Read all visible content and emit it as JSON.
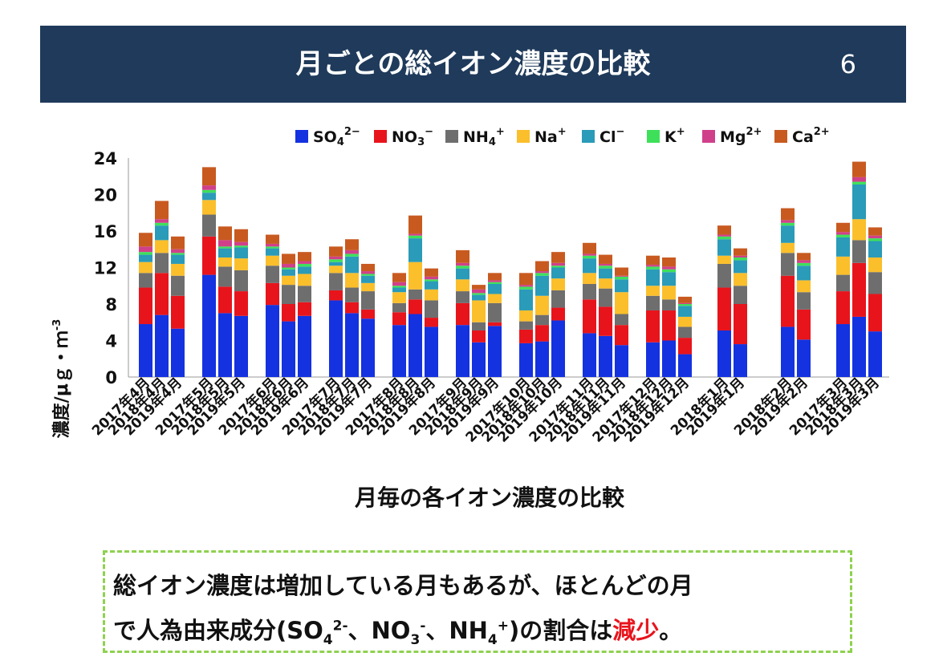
{
  "header": {
    "title": "月ごとの総イオン濃度の比較",
    "page_number": "6"
  },
  "note": {
    "line1": "総イオン濃度は増加している月もあるが、ほとんどの月",
    "line2_prefix": "で人為由来成分(SO",
    "so_sub": "4",
    "so_sup": "2-",
    "sep1": "、NO",
    "no_sub": "3",
    "no_sup": "-",
    "sep2": "、NH",
    "nh_sub": "4",
    "nh_sup": "+",
    "line2_mid": ")の割合は",
    "line2_emph": "減少",
    "line2_end": "。",
    "emph_color": "#e8141c"
  },
  "chart_data": {
    "type": "bar",
    "stacked": true,
    "xlabel": "月毎の各イオン濃度の比較",
    "ylabel": "濃度/μｇ・ｍ",
    "ylabel_sup": "-3",
    "ylim": [
      0,
      24
    ],
    "yticks": [
      0,
      4,
      8,
      12,
      16,
      20,
      24
    ],
    "legend_position": "top",
    "series": [
      {
        "name": "SO",
        "sub": "4",
        "sup": "2−",
        "color": "#1432e0"
      },
      {
        "name": "NO",
        "sub": "3",
        "sup": "−",
        "color": "#e8141c"
      },
      {
        "name": "NH",
        "sub": "4",
        "sup": "+",
        "color": "#6e6e6e"
      },
      {
        "name": "Na",
        "sub": "",
        "sup": "+",
        "color": "#fbbf2c"
      },
      {
        "name": "Cl",
        "sub": "",
        "sup": "−",
        "color": "#2a9bb8"
      },
      {
        "name": "K",
        "sub": "",
        "sup": "+",
        "color": "#3ee05a"
      },
      {
        "name": "Mg",
        "sub": "",
        "sup": "2+",
        "color": "#d0408a"
      },
      {
        "name": "Ca",
        "sub": "",
        "sup": "2+",
        "color": "#c85a20"
      }
    ],
    "groups": [
      {
        "bars": [
          {
            "label": "2017年4月",
            "values": [
              5.8,
              4.0,
              1.6,
              1.2,
              0.8,
              0.3,
              0.6,
              1.5
            ]
          },
          {
            "label": "2018年4月",
            "values": [
              6.8,
              4.6,
              2.2,
              1.4,
              1.6,
              0.3,
              0.4,
              2.0
            ]
          },
          {
            "label": "2019年4月",
            "values": [
              5.3,
              3.6,
              2.2,
              1.3,
              1.0,
              0.2,
              0.4,
              1.4
            ]
          }
        ]
      },
      {
        "bars": [
          {
            "label": "2017年5月",
            "values": [
              11.2,
              4.2,
              2.4,
              1.6,
              0.8,
              0.3,
              0.5,
              2.0
            ]
          },
          {
            "label": "2018年5月",
            "values": [
              7.0,
              2.9,
              2.2,
              1.0,
              1.0,
              0.2,
              0.7,
              1.5
            ]
          },
          {
            "label": "2019年5月",
            "values": [
              6.7,
              2.7,
              2.3,
              1.3,
              1.2,
              0.2,
              0.4,
              1.4
            ]
          }
        ]
      },
      {
        "bars": [
          {
            "label": "2017年6月",
            "values": [
              7.9,
              2.4,
              1.9,
              1.1,
              0.8,
              0.2,
              0.3,
              1.0
            ]
          },
          {
            "label": "2018年6月",
            "values": [
              6.1,
              1.9,
              2.1,
              1.0,
              0.7,
              0.2,
              0.4,
              1.1
            ]
          },
          {
            "label": "2019年6月",
            "values": [
              6.7,
              1.5,
              1.8,
              1.3,
              0.8,
              0.3,
              0.3,
              1.0
            ]
          }
        ]
      },
      {
        "bars": [
          {
            "label": "2017年7月",
            "values": [
              8.4,
              1.1,
              1.9,
              0.8,
              0.4,
              0.3,
              0.3,
              1.1
            ]
          },
          {
            "label": "2018年7月",
            "values": [
              7.0,
              1.2,
              1.6,
              1.6,
              1.8,
              0.3,
              0.4,
              1.2
            ]
          },
          {
            "label": "2019年7月",
            "values": [
              6.4,
              1.0,
              2.0,
              0.9,
              0.8,
              0.2,
              0.3,
              0.8
            ]
          }
        ]
      },
      {
        "bars": [
          {
            "label": "2017年8月",
            "values": [
              5.7,
              1.4,
              1.0,
              1.2,
              0.5,
              0.2,
              0.4,
              1.0
            ]
          },
          {
            "label": "2018年8月",
            "values": [
              6.9,
              1.6,
              1.1,
              3.0,
              2.6,
              0.3,
              0.2,
              2.0
            ]
          },
          {
            "label": "2019年8月",
            "values": [
              5.5,
              1.0,
              1.9,
              1.2,
              0.9,
              0.2,
              0.3,
              0.9
            ]
          }
        ]
      },
      {
        "bars": [
          {
            "label": "2017年9月",
            "values": [
              5.7,
              2.4,
              1.3,
              1.3,
              1.2,
              0.3,
              0.3,
              1.4
            ]
          },
          {
            "label": "2018年9月",
            "values": [
              3.8,
              1.3,
              0.9,
              2.4,
              0.6,
              0.2,
              0.4,
              0.5
            ]
          },
          {
            "label": "2019年9月",
            "values": [
              5.6,
              0.4,
              2.1,
              1.0,
              1.1,
              0.2,
              0.2,
              0.8
            ]
          }
        ]
      },
      {
        "bars": [
          {
            "label": "2017年10月",
            "values": [
              3.7,
              1.5,
              0.9,
              1.2,
              2.3,
              0.3,
              0.2,
              1.3
            ]
          },
          {
            "label": "2018年10月",
            "values": [
              3.9,
              1.8,
              1.1,
              2.1,
              2.2,
              0.3,
              0.2,
              1.1
            ]
          },
          {
            "label": "2019年10月",
            "values": [
              6.2,
              1.4,
              1.9,
              1.3,
              1.2,
              0.2,
              0.3,
              1.2
            ]
          }
        ]
      },
      {
        "bars": [
          {
            "label": "2017年11月",
            "values": [
              4.8,
              3.7,
              1.7,
              1.2,
              1.6,
              0.3,
              0.2,
              1.2
            ]
          },
          {
            "label": "2018年11月",
            "values": [
              4.5,
              3.2,
              2.0,
              1.1,
              1.1,
              0.3,
              0.2,
              1.0
            ]
          },
          {
            "label": "2019年11月",
            "values": [
              3.5,
              2.2,
              1.2,
              2.4,
              1.4,
              0.3,
              0.1,
              0.9
            ]
          }
        ]
      },
      {
        "bars": [
          {
            "label": "2017年12月",
            "values": [
              3.8,
              3.5,
              1.6,
              1.1,
              1.8,
              0.3,
              0.2,
              1.0
            ]
          },
          {
            "label": "2018年12月",
            "values": [
              4.0,
              3.3,
              1.2,
              1.5,
              1.5,
              0.3,
              0.3,
              1.0
            ]
          },
          {
            "label": "2019年12月",
            "values": [
              2.5,
              1.8,
              1.2,
              1.1,
              1.2,
              0.2,
              0.1,
              0.7
            ]
          }
        ]
      },
      {
        "bars": [
          {
            "label": "2018年1月",
            "values": [
              5.1,
              4.7,
              2.6,
              0.9,
              1.8,
              0.3,
              0.2,
              1.0
            ]
          },
          {
            "label": "2019年1月",
            "values": [
              3.6,
              4.4,
              2.0,
              1.4,
              1.4,
              0.3,
              0.2,
              0.8
            ]
          }
        ]
      },
      {
        "bars": [
          {
            "label": "2018年2月",
            "values": [
              5.5,
              5.6,
              2.5,
              1.1,
              1.9,
              0.3,
              0.3,
              1.3
            ]
          },
          {
            "label": "2019年2月",
            "values": [
              4.1,
              3.3,
              1.9,
              1.3,
              1.6,
              0.3,
              0.3,
              0.8
            ]
          }
        ]
      },
      {
        "bars": [
          {
            "label": "2017年3月",
            "values": [
              5.8,
              3.6,
              1.8,
              2.0,
              2.1,
              0.3,
              0.3,
              1.0
            ]
          },
          {
            "label": "2018年3月",
            "values": [
              6.6,
              5.9,
              2.5,
              2.3,
              3.8,
              0.3,
              0.5,
              1.7
            ]
          },
          {
            "label": "2019年3月",
            "values": [
              5.0,
              4.1,
              2.4,
              1.6,
              1.8,
              0.3,
              0.3,
              0.9
            ]
          }
        ]
      }
    ]
  }
}
